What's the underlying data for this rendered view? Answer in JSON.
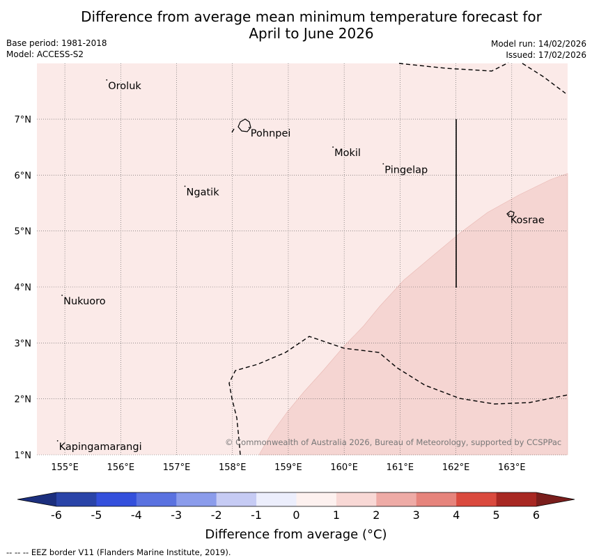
{
  "title_line1": "Difference from average mean minimum temperature forecast for",
  "title_line2": "April to June 2026",
  "base_period": "Base period: 1981-2018",
  "model": "Model: ACCESS-S2",
  "model_run": "Model run: 14/02/2026",
  "issued": "Issued: 17/02/2026",
  "map": {
    "lon_range": [
      154.5,
      164.0
    ],
    "lat_range": [
      1.0,
      8.0
    ],
    "lon_ticks": [
      "155°E",
      "156°E",
      "157°E",
      "158°E",
      "159°E",
      "160°E",
      "161°E",
      "162°E",
      "163°E"
    ],
    "lat_ticks": [
      "1°N",
      "2°N",
      "3°N",
      "4°N",
      "5°N",
      "6°N",
      "7°N"
    ],
    "background_color": "#fbeae8",
    "anomaly_color": "#f5d5d2",
    "places": [
      {
        "name": "Oroluk",
        "lon": 155.75,
        "lat": 7.7
      },
      {
        "name": "Pohnpei",
        "lon": 158.3,
        "lat": 6.85
      },
      {
        "name": "Mokil",
        "lon": 159.8,
        "lat": 6.5
      },
      {
        "name": "Pingelap",
        "lon": 160.7,
        "lat": 6.2
      },
      {
        "name": "Ngatik",
        "lon": 157.15,
        "lat": 5.8
      },
      {
        "name": "Kosrae",
        "lon": 162.95,
        "lat": 5.3
      },
      {
        "name": "Nukuoro",
        "lon": 154.95,
        "lat": 3.85
      },
      {
        "name": "Kapingamarangi",
        "lon": 154.87,
        "lat": 1.25
      }
    ]
  },
  "copyright": "© Commonwealth of Australia 2026, Bureau of Meteorology, supported by CCSPPac",
  "colorbar": {
    "ticks": [
      "-6",
      "-5",
      "-4",
      "-3",
      "-2",
      "-1",
      "0",
      "1",
      "2",
      "3",
      "4",
      "5",
      "6"
    ],
    "colors": [
      "#2a44a8",
      "#3450dc",
      "#5a72e0",
      "#8b9ceb",
      "#c6cbf4",
      "#eceefc",
      "#fdf1ef",
      "#f8d8d5",
      "#eeaba6",
      "#e6847c",
      "#da4a3e",
      "#a82823"
    ],
    "under_color": "#1c2f7e",
    "over_color": "#7a1e1c",
    "label": "Difference from average (°C)"
  },
  "footnote": "--  --  -- EEZ border V11 (Flanders Marine Institute, 2019)."
}
